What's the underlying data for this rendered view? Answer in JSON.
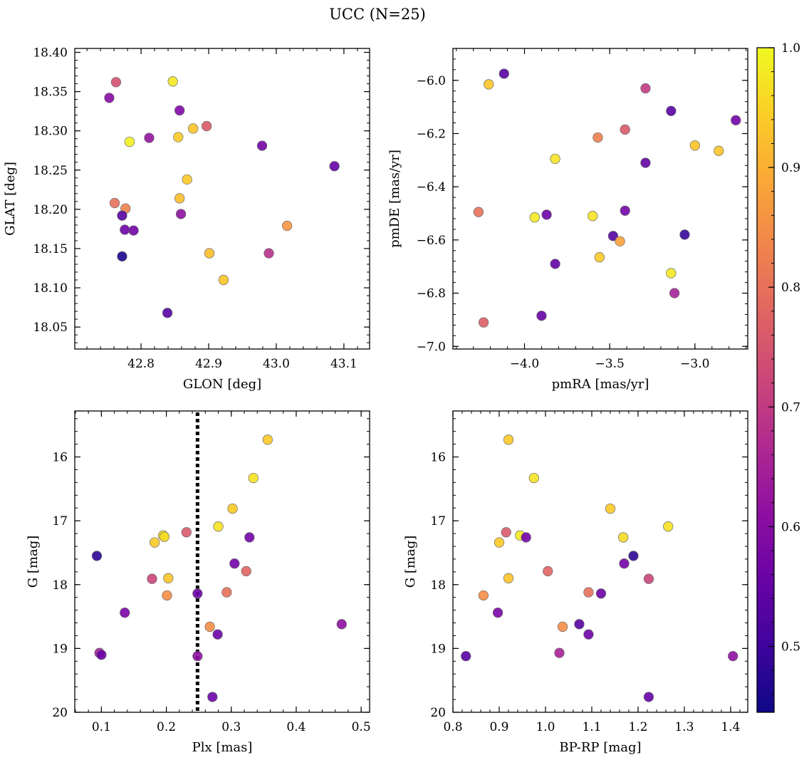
{
  "title": "UCC (N=25)",
  "colorbar": {
    "min": 0.445,
    "max": 1.0,
    "cmap": "plasma",
    "ticks": [
      0.5,
      0.6,
      0.7,
      0.8,
      0.9,
      1.0
    ],
    "tick_labels": [
      "0.5",
      "0.6",
      "0.7",
      "0.8",
      "0.9",
      "1.0"
    ]
  },
  "chart_data": [
    {
      "type": "scatter",
      "name": "glon-glat",
      "xlabel": "GLON [deg]",
      "ylabel": "GLAT [deg]",
      "xlim": [
        42.702,
        43.138
      ],
      "ylim": [
        18.022,
        18.405
      ],
      "y_inverted": false,
      "xticks": [
        42.8,
        42.9,
        43.0,
        43.1
      ],
      "xtick_labels": [
        "42.8",
        "42.9",
        "43.0",
        "43.1"
      ],
      "yticks": [
        18.05,
        18.1,
        18.15,
        18.2,
        18.25,
        18.3,
        18.35,
        18.4
      ],
      "ytick_labels": [
        "18.05",
        "18.10",
        "18.15",
        "18.20",
        "18.25",
        "18.30",
        "18.35",
        "18.40"
      ],
      "points": [
        {
          "x": 42.763,
          "y": 18.362,
          "c": 0.74
        },
        {
          "x": 42.753,
          "y": 18.342,
          "c": 0.6
        },
        {
          "x": 42.847,
          "y": 18.363,
          "c": 0.98
        },
        {
          "x": 42.857,
          "y": 18.326,
          "c": 0.59
        },
        {
          "x": 42.897,
          "y": 18.306,
          "c": 0.76
        },
        {
          "x": 42.877,
          "y": 18.303,
          "c": 0.93
        },
        {
          "x": 42.855,
          "y": 18.292,
          "c": 0.94
        },
        {
          "x": 42.812,
          "y": 18.291,
          "c": 0.62
        },
        {
          "x": 42.783,
          "y": 18.286,
          "c": 0.99
        },
        {
          "x": 42.979,
          "y": 18.281,
          "c": 0.57
        },
        {
          "x": 43.086,
          "y": 18.255,
          "c": 0.55
        },
        {
          "x": 42.868,
          "y": 18.238,
          "c": 0.94
        },
        {
          "x": 42.857,
          "y": 18.214,
          "c": 0.92
        },
        {
          "x": 42.761,
          "y": 18.208,
          "c": 0.8
        },
        {
          "x": 42.777,
          "y": 18.201,
          "c": 0.83
        },
        {
          "x": 42.859,
          "y": 18.194,
          "c": 0.61
        },
        {
          "x": 42.772,
          "y": 18.192,
          "c": 0.53
        },
        {
          "x": 43.016,
          "y": 18.179,
          "c": 0.86
        },
        {
          "x": 42.776,
          "y": 18.174,
          "c": 0.56
        },
        {
          "x": 42.789,
          "y": 18.173,
          "c": 0.57
        },
        {
          "x": 42.901,
          "y": 18.144,
          "c": 0.92
        },
        {
          "x": 42.989,
          "y": 18.144,
          "c": 0.68
        },
        {
          "x": 42.772,
          "y": 18.14,
          "c": 0.46
        },
        {
          "x": 42.922,
          "y": 18.11,
          "c": 0.93
        },
        {
          "x": 42.839,
          "y": 18.068,
          "c": 0.53
        }
      ]
    },
    {
      "type": "scatter",
      "name": "pmra-pmde",
      "xlabel": "pmRA [mas/yr]",
      "ylabel": "pmDE [mas/yr]",
      "xlim": [
        -4.42,
        -2.69
      ],
      "ylim": [
        -7.01,
        -5.88
      ],
      "y_inverted": false,
      "xticks": [
        -4.0,
        -3.5,
        -3.0
      ],
      "xtick_labels": [
        "−4.0",
        "−3.5",
        "−3.0"
      ],
      "yticks": [
        -7.0,
        -6.8,
        -6.6,
        -6.4,
        -6.2,
        -6.0
      ],
      "ytick_labels": [
        "−7.0",
        "−6.8",
        "−6.6",
        "−6.4",
        "−6.2",
        "−6.0"
      ],
      "points": [
        {
          "x": -4.12,
          "y": -5.975,
          "c": 0.53
        },
        {
          "x": -4.21,
          "y": -6.015,
          "c": 0.93
        },
        {
          "x": -3.29,
          "y": -6.03,
          "c": 0.7
        },
        {
          "x": -3.14,
          "y": -6.115,
          "c": 0.53
        },
        {
          "x": -2.76,
          "y": -6.15,
          "c": 0.57
        },
        {
          "x": -3.41,
          "y": -6.185,
          "c": 0.76
        },
        {
          "x": -3.57,
          "y": -6.215,
          "c": 0.83
        },
        {
          "x": -3.0,
          "y": -6.245,
          "c": 0.93
        },
        {
          "x": -2.86,
          "y": -6.265,
          "c": 0.93
        },
        {
          "x": -3.82,
          "y": -6.295,
          "c": 0.97
        },
        {
          "x": -3.29,
          "y": -6.31,
          "c": 0.55
        },
        {
          "x": -4.27,
          "y": -6.495,
          "c": 0.8
        },
        {
          "x": -3.41,
          "y": -6.49,
          "c": 0.57
        },
        {
          "x": -3.87,
          "y": -6.505,
          "c": 0.56
        },
        {
          "x": -3.94,
          "y": -6.515,
          "c": 0.98
        },
        {
          "x": -3.6,
          "y": -6.51,
          "c": 0.97
        },
        {
          "x": -3.48,
          "y": -6.585,
          "c": 0.53
        },
        {
          "x": -3.06,
          "y": -6.58,
          "c": 0.49
        },
        {
          "x": -3.44,
          "y": -6.605,
          "c": 0.88
        },
        {
          "x": -3.56,
          "y": -6.665,
          "c": 0.94
        },
        {
          "x": -3.82,
          "y": -6.69,
          "c": 0.55
        },
        {
          "x": -3.14,
          "y": -6.725,
          "c": 0.98
        },
        {
          "x": -3.12,
          "y": -6.8,
          "c": 0.65
        },
        {
          "x": -3.9,
          "y": -6.885,
          "c": 0.55
        },
        {
          "x": -4.24,
          "y": -6.91,
          "c": 0.77
        }
      ]
    },
    {
      "type": "scatter",
      "name": "plx-g",
      "xlabel": "Plx [mas]",
      "ylabel": "G [mag]",
      "xlim": [
        0.059,
        0.513
      ],
      "ylim": [
        15.28,
        20.0
      ],
      "y_inverted": true,
      "xticks": [
        0.1,
        0.2,
        0.3,
        0.4,
        0.5
      ],
      "xtick_labels": [
        "0.1",
        "0.2",
        "0.3",
        "0.4",
        "0.5"
      ],
      "yticks": [
        16,
        17,
        18,
        19,
        20
      ],
      "ytick_labels": [
        "16",
        "17",
        "18",
        "19",
        "20"
      ],
      "vline": {
        "x": 0.248,
        "style": "dotted"
      },
      "points": [
        {
          "x": 0.356,
          "y": 15.73,
          "c": 0.94
        },
        {
          "x": 0.334,
          "y": 16.33,
          "c": 0.97
        },
        {
          "x": 0.302,
          "y": 16.81,
          "c": 0.94
        },
        {
          "x": 0.28,
          "y": 17.09,
          "c": 0.97
        },
        {
          "x": 0.231,
          "y": 17.18,
          "c": 0.76
        },
        {
          "x": 0.195,
          "y": 17.23,
          "c": 0.98
        },
        {
          "x": 0.197,
          "y": 17.25,
          "c": 0.96
        },
        {
          "x": 0.328,
          "y": 17.26,
          "c": 0.57
        },
        {
          "x": 0.182,
          "y": 17.34,
          "c": 0.94
        },
        {
          "x": 0.093,
          "y": 17.55,
          "c": 0.48
        },
        {
          "x": 0.305,
          "y": 17.67,
          "c": 0.57
        },
        {
          "x": 0.323,
          "y": 17.79,
          "c": 0.78
        },
        {
          "x": 0.203,
          "y": 17.9,
          "c": 0.93
        },
        {
          "x": 0.178,
          "y": 17.91,
          "c": 0.72
        },
        {
          "x": 0.293,
          "y": 18.12,
          "c": 0.8
        },
        {
          "x": 0.248,
          "y": 18.14,
          "c": 0.56
        },
        {
          "x": 0.201,
          "y": 18.17,
          "c": 0.85
        },
        {
          "x": 0.136,
          "y": 18.44,
          "c": 0.58
        },
        {
          "x": 0.47,
          "y": 18.62,
          "c": 0.61
        },
        {
          "x": 0.267,
          "y": 18.66,
          "c": 0.85
        },
        {
          "x": 0.279,
          "y": 18.78,
          "c": 0.56
        },
        {
          "x": 0.097,
          "y": 19.07,
          "c": 0.65
        },
        {
          "x": 0.1,
          "y": 19.1,
          "c": 0.56
        },
        {
          "x": 0.248,
          "y": 19.12,
          "c": 0.61
        },
        {
          "x": 0.271,
          "y": 19.76,
          "c": 0.56
        }
      ]
    },
    {
      "type": "scatter",
      "name": "bprp-g",
      "xlabel": "BP-RP [mag]",
      "ylabel": "G [mag]",
      "xlim": [
        0.8,
        1.437
      ],
      "ylim": [
        15.28,
        20.0
      ],
      "y_inverted": true,
      "xticks": [
        0.8,
        0.9,
        1.0,
        1.1,
        1.2,
        1.3,
        1.4
      ],
      "xtick_labels": [
        "0.8",
        "0.9",
        "1.0",
        "1.1",
        "1.2",
        "1.3",
        "1.4"
      ],
      "yticks": [
        16,
        17,
        18,
        19,
        20
      ],
      "ytick_labels": [
        "16",
        "17",
        "18",
        "19",
        "20"
      ],
      "points": [
        {
          "x": 0.92,
          "y": 15.73,
          "c": 0.94
        },
        {
          "x": 0.975,
          "y": 16.33,
          "c": 0.97
        },
        {
          "x": 1.14,
          "y": 16.81,
          "c": 0.94
        },
        {
          "x": 1.265,
          "y": 17.09,
          "c": 0.97
        },
        {
          "x": 0.915,
          "y": 17.18,
          "c": 0.76
        },
        {
          "x": 0.945,
          "y": 17.23,
          "c": 0.98
        },
        {
          "x": 1.168,
          "y": 17.26,
          "c": 0.96
        },
        {
          "x": 0.958,
          "y": 17.26,
          "c": 0.57
        },
        {
          "x": 0.9,
          "y": 17.34,
          "c": 0.94
        },
        {
          "x": 1.19,
          "y": 17.55,
          "c": 0.48
        },
        {
          "x": 1.17,
          "y": 17.67,
          "c": 0.57
        },
        {
          "x": 1.005,
          "y": 17.79,
          "c": 0.78
        },
        {
          "x": 0.92,
          "y": 17.9,
          "c": 0.93
        },
        {
          "x": 1.223,
          "y": 17.91,
          "c": 0.72
        },
        {
          "x": 1.093,
          "y": 18.12,
          "c": 0.8
        },
        {
          "x": 1.12,
          "y": 18.14,
          "c": 0.56
        },
        {
          "x": 0.866,
          "y": 18.17,
          "c": 0.85
        },
        {
          "x": 0.897,
          "y": 18.44,
          "c": 0.58
        },
        {
          "x": 1.073,
          "y": 18.62,
          "c": 0.53
        },
        {
          "x": 1.037,
          "y": 18.66,
          "c": 0.85
        },
        {
          "x": 1.093,
          "y": 18.78,
          "c": 0.56
        },
        {
          "x": 1.03,
          "y": 19.07,
          "c": 0.65
        },
        {
          "x": 0.828,
          "y": 19.12,
          "c": 0.53
        },
        {
          "x": 1.405,
          "y": 19.12,
          "c": 0.61
        },
        {
          "x": 1.223,
          "y": 19.76,
          "c": 0.55
        }
      ]
    }
  ]
}
